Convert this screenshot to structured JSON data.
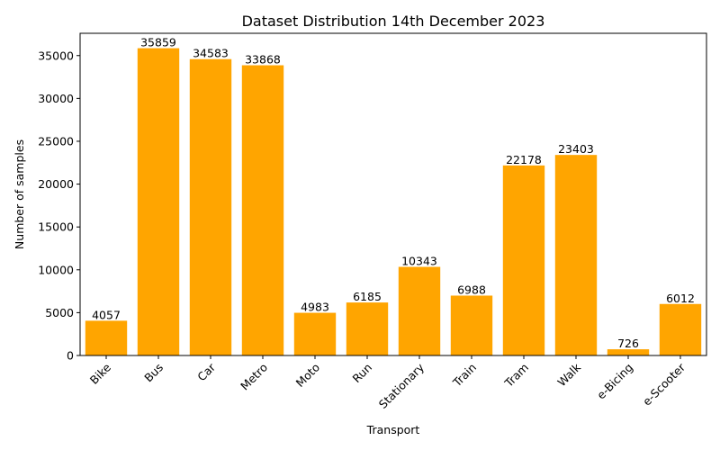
{
  "chart_data": {
    "type": "bar",
    "title": "Dataset Distribution 14th December 2023",
    "xlabel": "Transport",
    "ylabel": "Number of samples",
    "categories": [
      "Bike",
      "Bus",
      "Car",
      "Metro",
      "Moto",
      "Run",
      "Stationary",
      "Train",
      "Tram",
      "Walk",
      "e-Bicing",
      "e-Scooter"
    ],
    "values": [
      4057,
      35859,
      34583,
      33868,
      4983,
      6185,
      10343,
      6988,
      22178,
      23403,
      726,
      6012
    ],
    "ylim": [
      0,
      37600
    ],
    "yticks": [
      0,
      5000,
      10000,
      15000,
      20000,
      25000,
      30000,
      35000
    ],
    "bar_color": "#ffa500",
    "grid": false,
    "xtick_rotation": 45
  }
}
